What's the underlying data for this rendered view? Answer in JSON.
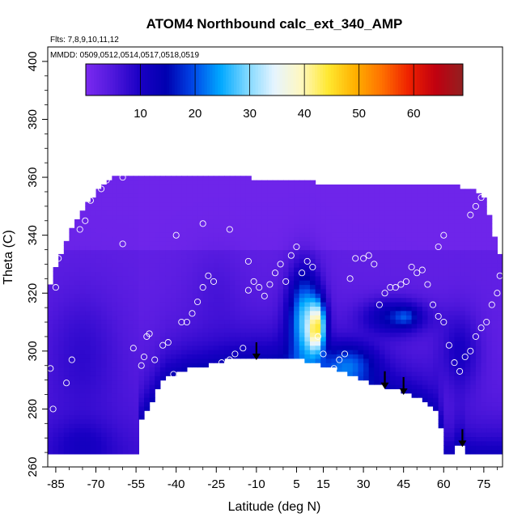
{
  "chart_data": {
    "type": "heatmap",
    "title": "ATOM4 Northbound calc_ext_340_AMP",
    "flights_text": "Flts: 7,8,9,10,11,12",
    "dates_text": "MMDD: 0509,0512,0514,0517,0518,0519",
    "xlabel": "Latitude (deg N)",
    "ylabel": "Theta (C)",
    "xlim": [
      -88,
      82
    ],
    "ylim": [
      260,
      405
    ],
    "x_ticks": [
      -85,
      -70,
      -55,
      -40,
      -25,
      -10,
      5,
      15,
      30,
      45,
      60,
      75
    ],
    "y_ticks": [
      260,
      280,
      300,
      320,
      340,
      360,
      380,
      400
    ],
    "colorbar": {
      "ticks": [
        10,
        20,
        30,
        40,
        50,
        60
      ],
      "range": [
        0,
        69
      ],
      "colors": [
        "#7b2bf0",
        "#5018dc",
        "#1a00c4",
        "#0000b0",
        "#0048e8",
        "#00a8ff",
        "#7fd8ff",
        "#e6f4ff",
        "#fff8c0",
        "#ffe830",
        "#ffb000",
        "#ff7000",
        "#ee2000",
        "#c00010",
        "#922020"
      ]
    },
    "tropopause_arrows_lat": [
      -10,
      38,
      45,
      67
    ],
    "sample_points": [
      [
        -87,
        294
      ],
      [
        -86,
        280
      ],
      [
        -85,
        322
      ],
      [
        -84,
        332
      ],
      [
        -81,
        289
      ],
      [
        -79,
        297
      ],
      [
        -76,
        342
      ],
      [
        -74,
        345
      ],
      [
        -72,
        352
      ],
      [
        -68,
        356
      ],
      [
        -66,
        359
      ],
      [
        -60,
        360
      ],
      [
        -56,
        301
      ],
      [
        -53,
        295
      ],
      [
        -52,
        298
      ],
      [
        -51,
        305
      ],
      [
        -50,
        306
      ],
      [
        -48,
        297
      ],
      [
        -45,
        302
      ],
      [
        -43,
        303
      ],
      [
        -41,
        292
      ],
      [
        -40,
        289
      ],
      [
        -38,
        310
      ],
      [
        -36,
        310
      ],
      [
        -34,
        313
      ],
      [
        -32,
        317
      ],
      [
        -30,
        322
      ],
      [
        -28,
        326
      ],
      [
        -26,
        324
      ],
      [
        -23,
        296
      ],
      [
        -20,
        297
      ],
      [
        -18,
        299
      ],
      [
        -15,
        301
      ],
      [
        -13,
        321
      ],
      [
        -11,
        324
      ],
      [
        -9,
        322
      ],
      [
        -7,
        319
      ],
      [
        -5,
        323
      ],
      [
        -3,
        327
      ],
      [
        -1,
        330
      ],
      [
        1,
        324
      ],
      [
        3,
        333
      ],
      [
        5,
        336
      ],
      [
        7,
        327
      ],
      [
        9,
        331
      ],
      [
        11,
        329
      ],
      [
        13,
        305
      ],
      [
        15,
        299
      ],
      [
        17,
        292
      ],
      [
        19,
        294
      ],
      [
        21,
        297
      ],
      [
        23,
        299
      ],
      [
        25,
        325
      ],
      [
        27,
        332
      ],
      [
        30,
        332
      ],
      [
        32,
        333
      ],
      [
        34,
        330
      ],
      [
        36,
        316
      ],
      [
        38,
        320
      ],
      [
        40,
        322
      ],
      [
        42,
        322
      ],
      [
        44,
        323
      ],
      [
        46,
        324
      ],
      [
        48,
        329
      ],
      [
        50,
        327
      ],
      [
        52,
        328
      ],
      [
        54,
        323
      ],
      [
        56,
        316
      ],
      [
        58,
        312
      ],
      [
        60,
        310
      ],
      [
        62,
        302
      ],
      [
        64,
        296
      ],
      [
        66,
        293
      ],
      [
        68,
        298
      ],
      [
        70,
        300
      ],
      [
        72,
        305
      ],
      [
        74,
        308
      ],
      [
        76,
        310
      ],
      [
        78,
        316
      ],
      [
        80,
        320
      ],
      [
        81,
        326
      ],
      [
        60,
        340
      ],
      [
        70,
        347
      ],
      [
        72,
        350
      ],
      [
        74,
        353
      ],
      [
        58,
        336
      ],
      [
        -13,
        331
      ],
      [
        -60,
        337
      ],
      [
        -40,
        340
      ],
      [
        -30,
        344
      ],
      [
        -20,
        342
      ]
    ]
  }
}
